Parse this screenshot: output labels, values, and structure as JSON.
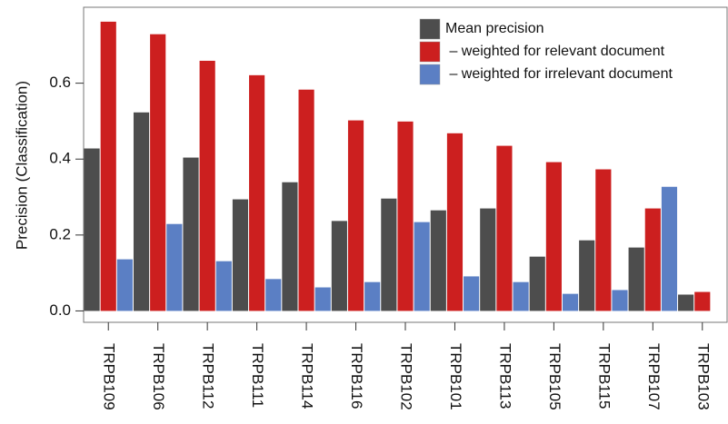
{
  "chart_data": {
    "type": "bar",
    "ylabel": "Precision (Classification)",
    "categories": [
      "TRPB109",
      "TRPB106",
      "TRPB112",
      "TRPB111",
      "TRPB114",
      "TRPB116",
      "TRPB102",
      "TRPB101",
      "TRPB113",
      "TRPB105",
      "TRPB115",
      "TRPB107",
      "TRPB103"
    ],
    "series": [
      {
        "name": "Mean precision",
        "color": "#4d4d4d",
        "values": [
          0.428,
          0.523,
          0.404,
          0.294,
          0.339,
          0.237,
          0.296,
          0.265,
          0.27,
          0.143,
          0.186,
          0.167,
          0.043
        ]
      },
      {
        "name": " – weighted for relevant document",
        "color": "#cc1f1f",
        "values": [
          0.762,
          0.729,
          0.659,
          0.621,
          0.583,
          0.502,
          0.499,
          0.468,
          0.435,
          0.392,
          0.373,
          0.27,
          0.05
        ]
      },
      {
        "name": " – weighted for irrelevant document",
        "color": "#5b7fc4",
        "values": [
          0.136,
          0.229,
          0.131,
          0.084,
          0.062,
          0.076,
          0.234,
          0.091,
          0.076,
          0.045,
          0.055,
          0.327,
          0
        ]
      }
    ],
    "ylim": [
      -0.03,
      0.8
    ],
    "yticks": [
      {
        "value": 0,
        "label": "0.0"
      },
      0.2,
      0.4,
      0.6
    ],
    "legend": "top-right"
  }
}
